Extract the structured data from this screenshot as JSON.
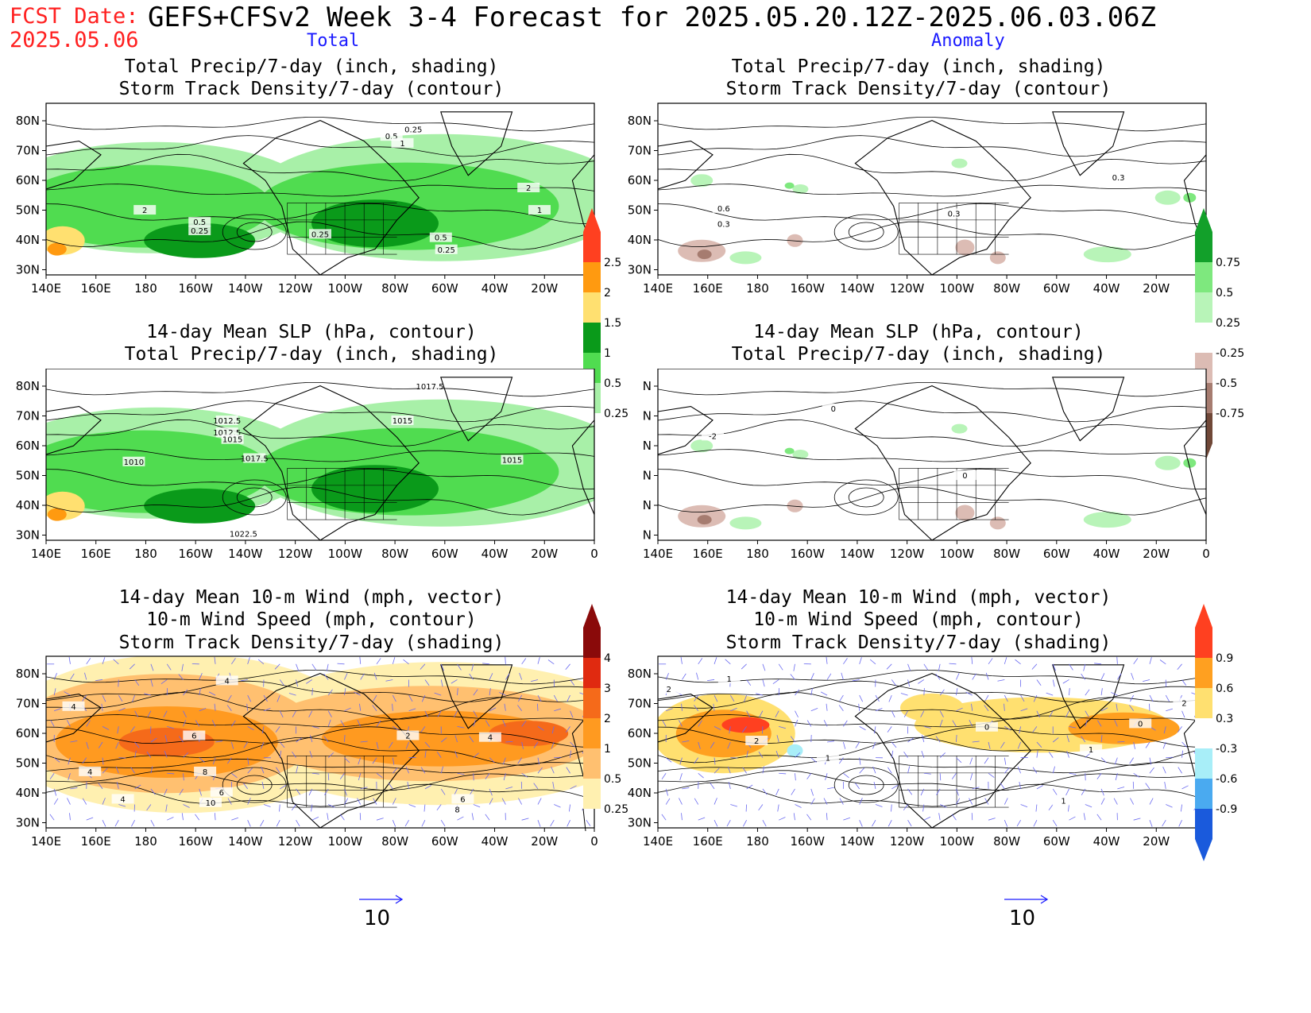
{
  "header": {
    "fcst_label": "FCST Date:",
    "fcst_date": "2025.05.06",
    "title": "GEFS+CFSv2 Week 3-4 Forecast for 2025.05.20.12Z-2025.06.03.06Z"
  },
  "columns": {
    "left": "Total",
    "right": "Anomaly"
  },
  "axes": {
    "lon_labels": [
      "140E",
      "160E",
      "180",
      "160W",
      "140W",
      "120W",
      "100W",
      "80W",
      "60W",
      "40W",
      "20W",
      "0"
    ],
    "lat_labels": [
      "80N",
      "70N",
      "60N",
      "50N",
      "40N",
      "30N"
    ]
  },
  "panels": {
    "row1": {
      "title1": "Total Precip/7-day (inch, shading)",
      "title2": "Storm Track Density/7-day (contour)"
    },
    "row2": {
      "title1": "14-day Mean SLP (hPa, contour)",
      "title2": "Total Precip/7-day (inch, shading)"
    },
    "row3": {
      "title1": "14-day Mean 10-m Wind (mph, vector)",
      "title2": "10-m Wind Speed (mph, contour)",
      "title3": "Storm Track Density/7-day (shading)"
    }
  },
  "contour_labels": {
    "p1": [
      "0.25",
      "0.5",
      "1",
      "2",
      "2",
      "1",
      "0.5",
      "0.25",
      "0.25",
      "0.5",
      "0.25"
    ],
    "p2": [
      "0.6",
      "0.3",
      "0.3",
      "0.3"
    ],
    "p3": [
      "1017.5",
      "1012.5",
      "1012.5",
      "1015",
      "1010",
      "1017.5",
      "1015",
      "1015",
      "1022.5"
    ],
    "p4": [
      "0",
      "-2",
      "0"
    ],
    "p5": [
      "4",
      "4",
      "6",
      "4",
      "8",
      "2",
      "4",
      "6",
      "6",
      "8",
      "10",
      "4"
    ],
    "p6": [
      "2",
      "1",
      "2",
      "1",
      "0",
      "2",
      "1",
      "0",
      "1"
    ]
  },
  "colorbars": {
    "precip_total": {
      "labels": [
        "2.5",
        "2",
        "1.5",
        "1",
        "0.5",
        "0.25"
      ],
      "colors": [
        "#ff4020",
        "#ff9a10",
        "#ffe070",
        "#0a9a1a",
        "#50dc50",
        "#a8f0a8"
      ]
    },
    "precip_anom": {
      "labels": [
        "0.75",
        "0.5",
        "0.25",
        "-0.25",
        "-0.5",
        "-0.75"
      ],
      "colors": [
        "#12a02a",
        "#7ee87e",
        "#b8f4b8",
        "#ffffff",
        "#dcbcb4",
        "#a67c70",
        "#704838"
      ]
    },
    "track_total": {
      "labels": [
        "4",
        "3",
        "2",
        "1",
        "0.5",
        "0.25"
      ],
      "colors": [
        "#8a0a0a",
        "#e02a10",
        "#f56a1a",
        "#ff9a20",
        "#ffc070",
        "#fff0b0"
      ]
    },
    "track_anom": {
      "labels": [
        "0.9",
        "0.6",
        "0.3",
        "-0.3",
        "-0.6",
        "-0.9"
      ],
      "colors": [
        "#ff4020",
        "#ffa020",
        "#ffe070",
        "#ffffff",
        "#a8eef8",
        "#4aaaf0",
        "#1a5adc"
      ]
    }
  },
  "wind_reference": {
    "left": "10",
    "right": "10"
  }
}
